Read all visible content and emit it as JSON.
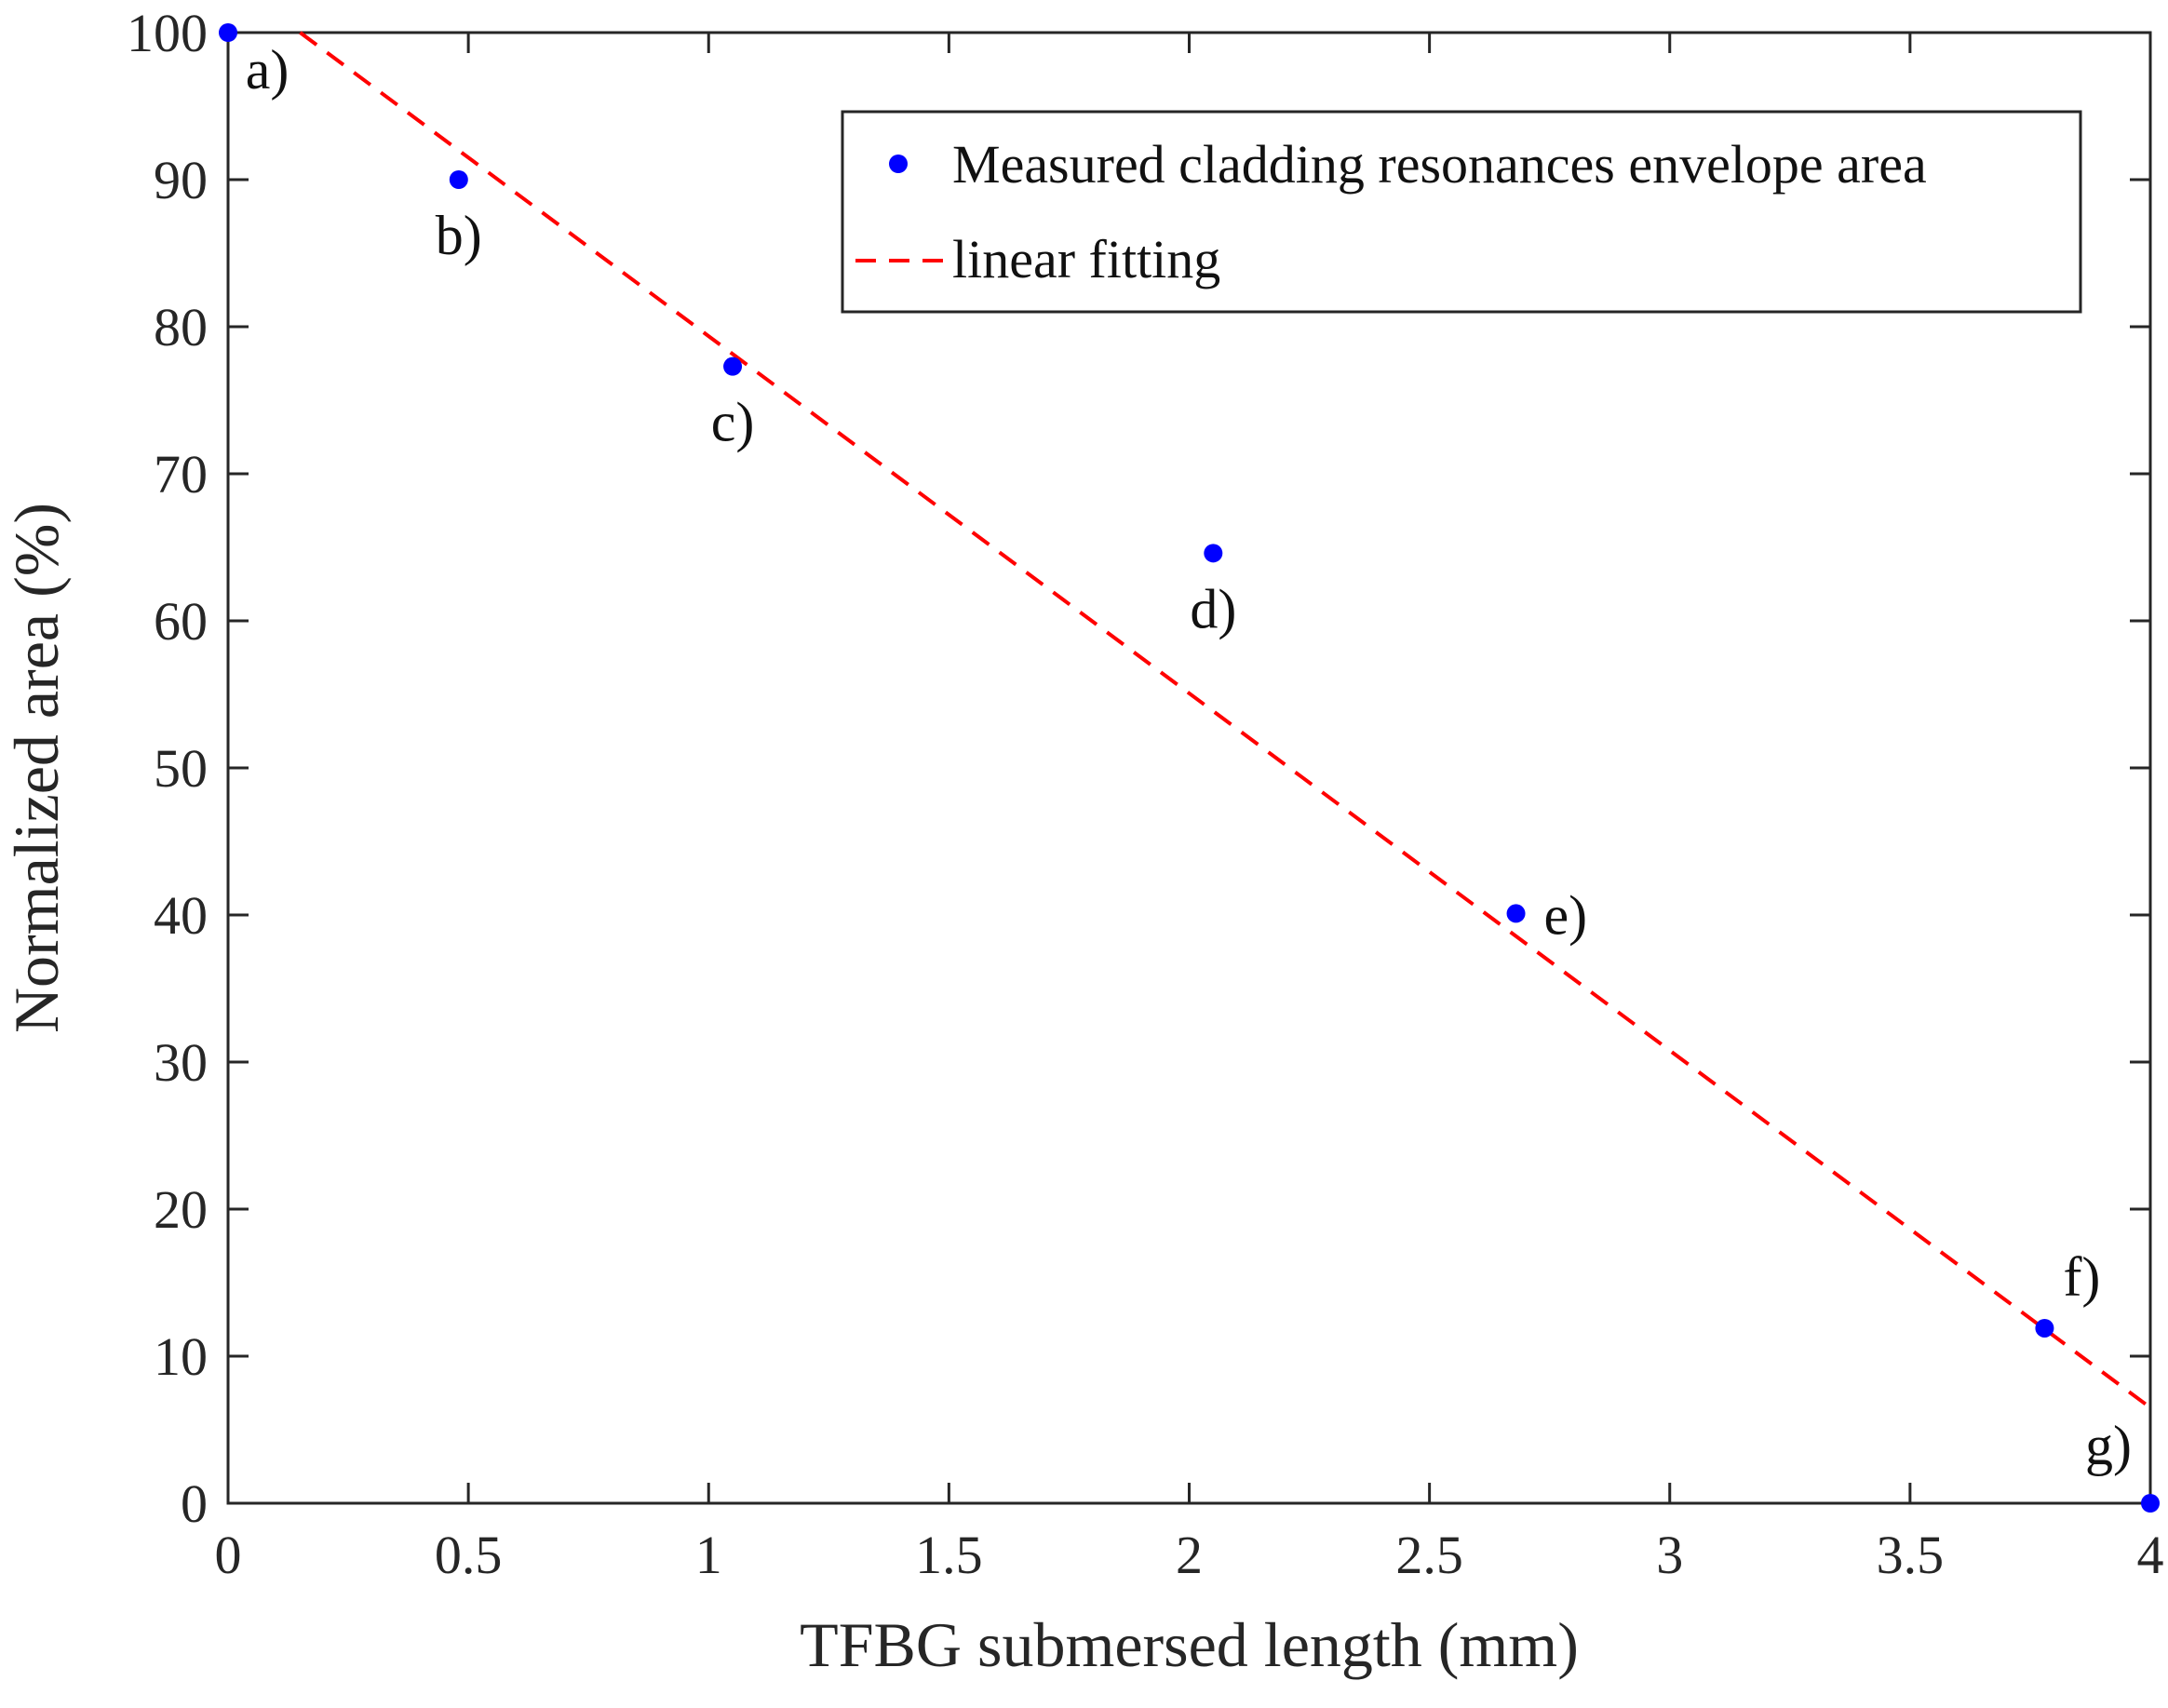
{
  "chart_data": {
    "type": "scatter",
    "title": "",
    "xlabel": "TFBG submersed length (mm)",
    "ylabel": "Normalized area (%)",
    "xlim": [
      0,
      4
    ],
    "ylim": [
      0,
      100
    ],
    "xticks": [
      0,
      0.5,
      1,
      1.5,
      2,
      2.5,
      3,
      3.5,
      4
    ],
    "xtick_labels": [
      "0",
      "0.5",
      "1",
      "1.5",
      "2",
      "2.5",
      "3",
      "3.5",
      "4"
    ],
    "yticks": [
      0,
      10,
      20,
      30,
      40,
      50,
      60,
      70,
      80,
      90,
      100
    ],
    "ytick_labels": [
      "0",
      "10",
      "20",
      "30",
      "40",
      "50",
      "60",
      "70",
      "80",
      "90",
      "100"
    ],
    "grid": false,
    "legend_position": "top-right",
    "series": [
      {
        "name": "Measured cladding resonances envelope area",
        "type": "scatter",
        "color": "#0000ff",
        "x": [
          0,
          0.48,
          1.05,
          2.05,
          2.68,
          3.78,
          4.0
        ],
        "y": [
          100,
          90,
          77.3,
          64.6,
          40.1,
          11.9,
          0
        ],
        "point_labels": [
          "a)",
          "b)",
          "c)",
          "d)",
          "e)",
          "f)",
          "g)"
        ],
        "label_placement": [
          "below-right",
          "below",
          "below",
          "below",
          "right",
          "above",
          "above-left"
        ]
      },
      {
        "name": "linear fitting",
        "type": "line",
        "style": "dashed",
        "color": "#ff0000",
        "x": [
          0.15,
          4.0
        ],
        "y": [
          100,
          6.5
        ]
      }
    ]
  }
}
